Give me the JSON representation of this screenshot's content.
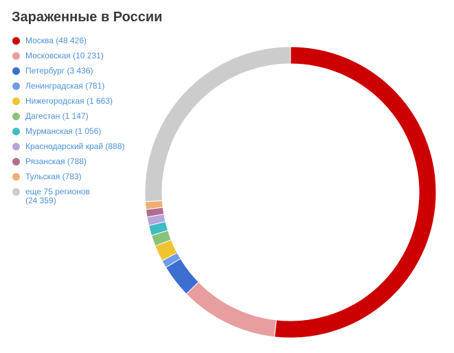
{
  "chart_data": {
    "type": "pie",
    "variant": "donut",
    "title": "Зараженные в России",
    "legend_position": "left",
    "slices": [
      {
        "label": "Москва (48 426)",
        "value": 48426,
        "color": "#cc0000"
      },
      {
        "label": "Московская (10 231)",
        "value": 10231,
        "color": "#e89e9e"
      },
      {
        "label": "Петербург (3 436)",
        "value": 3436,
        "color": "#3d6fd0"
      },
      {
        "label": "Ленинградская (781)",
        "value": 781,
        "color": "#6d9be6"
      },
      {
        "label": "Нижегородская (1 663)",
        "value": 1663,
        "color": "#efc430"
      },
      {
        "label": "Дагестан (1 147)",
        "value": 1147,
        "color": "#89c27a"
      },
      {
        "label": "Мурманская (1 056)",
        "value": 1056,
        "color": "#3fbcc4"
      },
      {
        "label": "Краснодарский край (888)",
        "value": 888,
        "color": "#b5a6dc"
      },
      {
        "label": "Рязанская (788)",
        "value": 788,
        "color": "#b46c8e"
      },
      {
        "label": "Тульская (783)",
        "value": 783,
        "color": "#f1ae74"
      },
      {
        "label": "еще 75 регионов\n(24 359)",
        "value": 24359,
        "color": "#cccccc"
      }
    ]
  }
}
